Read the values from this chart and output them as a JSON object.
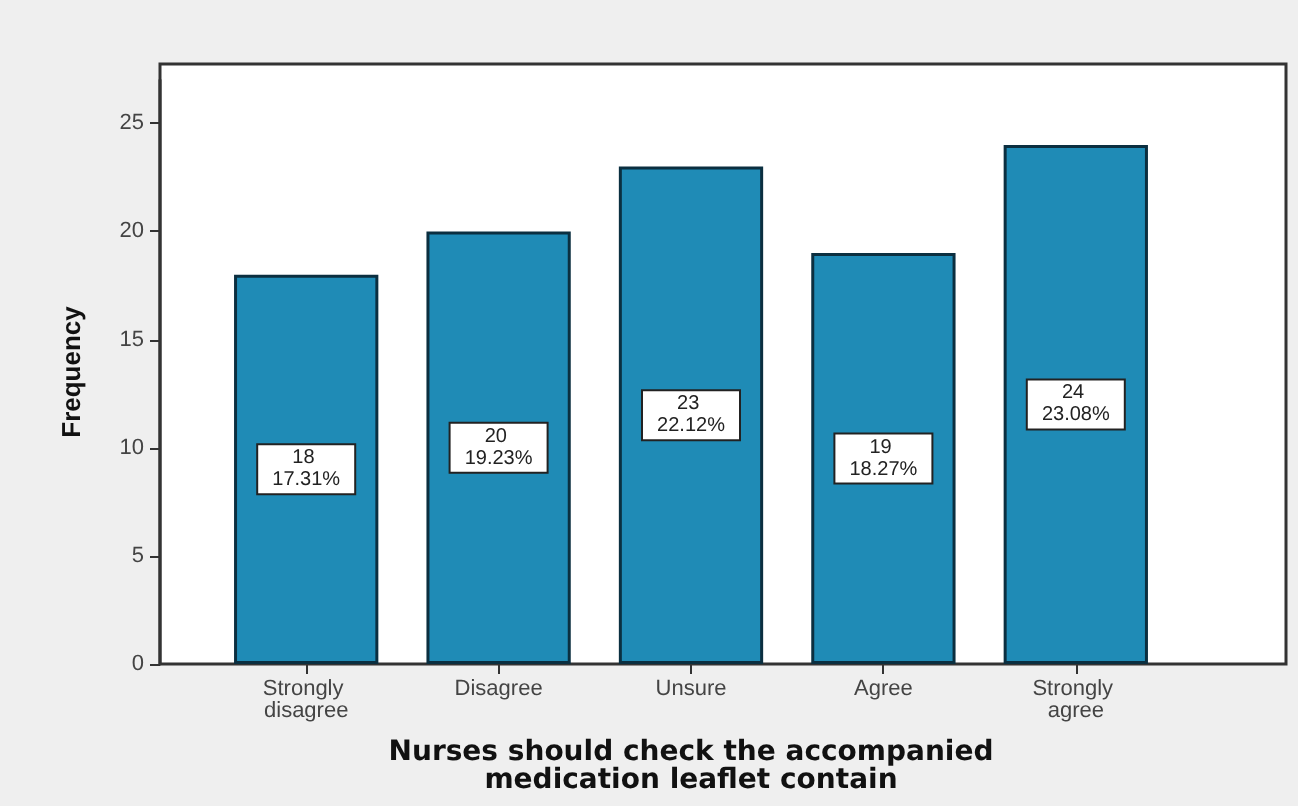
{
  "chart_data": {
    "type": "bar",
    "xlabel": "Nurses should check the accompanied medication leaflet contain",
    "ylabel": "Frequency",
    "categories": [
      "Strongly disagree",
      "Disagree",
      "Unsure",
      "Agree",
      "Strongly agree"
    ],
    "values": [
      18,
      20,
      23,
      19,
      24
    ],
    "value_labels": [
      "18 17.31%",
      "20 19.23%",
      "23 22.12%",
      "19 18.27%",
      "24 23.08%"
    ],
    "color": "#1f8bb6",
    "ylim": [
      0,
      27
    ],
    "yticks": [
      0,
      5,
      10,
      15,
      20,
      25
    ],
    "grid": false
  }
}
